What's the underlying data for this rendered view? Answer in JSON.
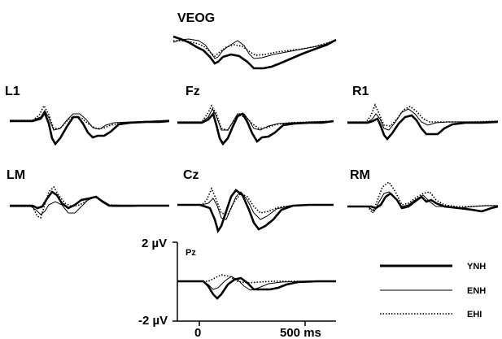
{
  "chart_data": {
    "type": "line",
    "series_styles": [
      {
        "name": "YNH",
        "style": "thick-solid"
      },
      {
        "name": "ENH",
        "style": "thin-solid"
      },
      {
        "name": "EHI",
        "style": "dotted"
      }
    ],
    "legend": {
      "placement": "bottom-right",
      "items": [
        "YNH",
        "ENH",
        "EHI"
      ]
    },
    "scale_bar": {
      "y_top_label": "2 µV",
      "y_bottom_label": "-2 µV",
      "x_labels": [
        "0",
        "500 ms"
      ],
      "ylim": [
        -2,
        2
      ],
      "xlim": [
        -100,
        600
      ]
    },
    "panels": [
      {
        "key": "veog",
        "label": "VEOG"
      },
      {
        "key": "l1",
        "label": "L1"
      },
      {
        "key": "fz",
        "label": "Fz"
      },
      {
        "key": "r1",
        "label": "R1"
      },
      {
        "key": "lm",
        "label": "LM"
      },
      {
        "key": "cz",
        "label": "Cz"
      },
      {
        "key": "rm",
        "label": "RM"
      },
      {
        "key": "pz",
        "label": "Pz"
      }
    ]
  }
}
